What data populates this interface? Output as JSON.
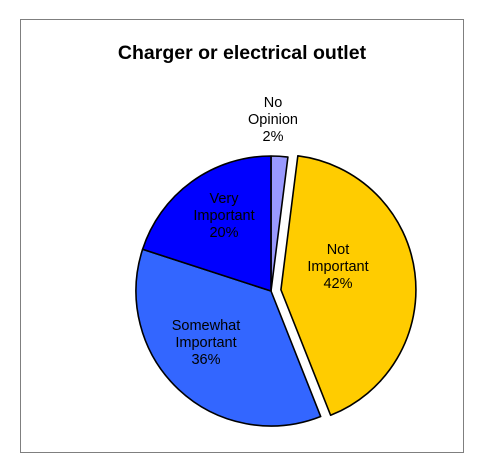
{
  "chart_data": {
    "type": "pie",
    "title": "Charger or electrical outlet",
    "slices": [
      {
        "label": [
          "No",
          "Opinion"
        ],
        "percent_label": "2%",
        "value": 2,
        "color": "#9999ff",
        "text_color": "#000000"
      },
      {
        "label": [
          "Not",
          "Important"
        ],
        "percent_label": "42%",
        "value": 42,
        "color": "#ffcc00",
        "text_color": "#000000",
        "exploded": true
      },
      {
        "label": [
          "Somewhat",
          "Important"
        ],
        "percent_label": "36%",
        "value": 36,
        "color": "#3366ff",
        "text_color": "#000000"
      },
      {
        "label": [
          "Very",
          "Important"
        ],
        "percent_label": "20%",
        "value": 20,
        "color": "#0000ff",
        "text_color": "#000000"
      }
    ]
  }
}
